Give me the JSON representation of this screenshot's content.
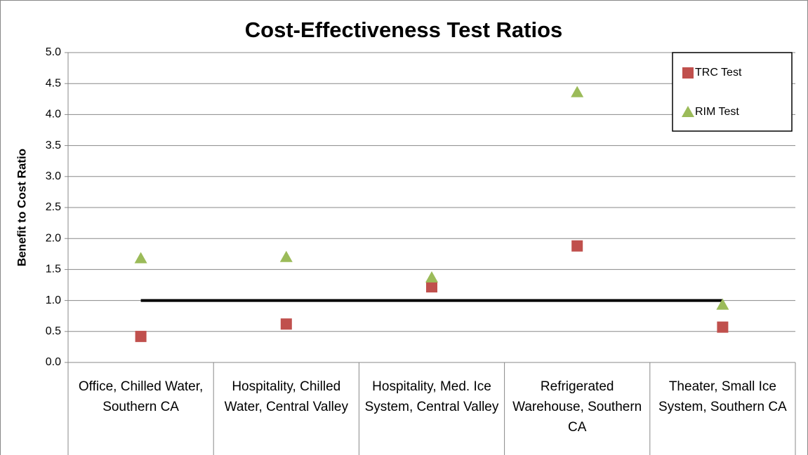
{
  "chart_data": {
    "type": "scatter",
    "title": "Cost-Effectiveness Test Ratios",
    "y_label": "Benefit to Cost Ratio",
    "categories": [
      "Office, Chilled Water, Southern CA",
      "Hospitality, Chilled Water, Central Valley",
      "Hospitality, Med. Ice System, Central Valley",
      "Refrigerated Warehouse, Southern CA",
      "Theater, Small Ice System, Southern CA"
    ],
    "series": [
      {
        "name": "TRC Test",
        "color": "#c0504d",
        "marker": "square",
        "values": [
          0.42,
          0.62,
          1.22,
          1.88,
          0.57
        ]
      },
      {
        "name": "RIM Test",
        "color": "#9bbb59",
        "marker": "triangle",
        "values": [
          1.68,
          1.7,
          1.37,
          4.36,
          0.93
        ]
      }
    ],
    "reference_line": 1,
    "ylim": [
      0,
      5
    ],
    "yticks": [
      {
        "value": 0,
        "label": "0.0"
      },
      {
        "value": 0.5,
        "label": "0.5"
      },
      {
        "value": 1,
        "label": "1.0"
      },
      {
        "value": 1.5,
        "label": "1.5"
      },
      {
        "value": 2,
        "label": "2.0"
      },
      {
        "value": 2.5,
        "label": "2.5"
      },
      {
        "value": 3,
        "label": "3.0"
      },
      {
        "value": 3.5,
        "label": "3.5"
      },
      {
        "value": 4,
        "label": "4.0"
      },
      {
        "value": 4.5,
        "label": "4.5"
      },
      {
        "value": 5,
        "label": "5.0"
      }
    ],
    "grid": true,
    "legend": "top-right"
  }
}
